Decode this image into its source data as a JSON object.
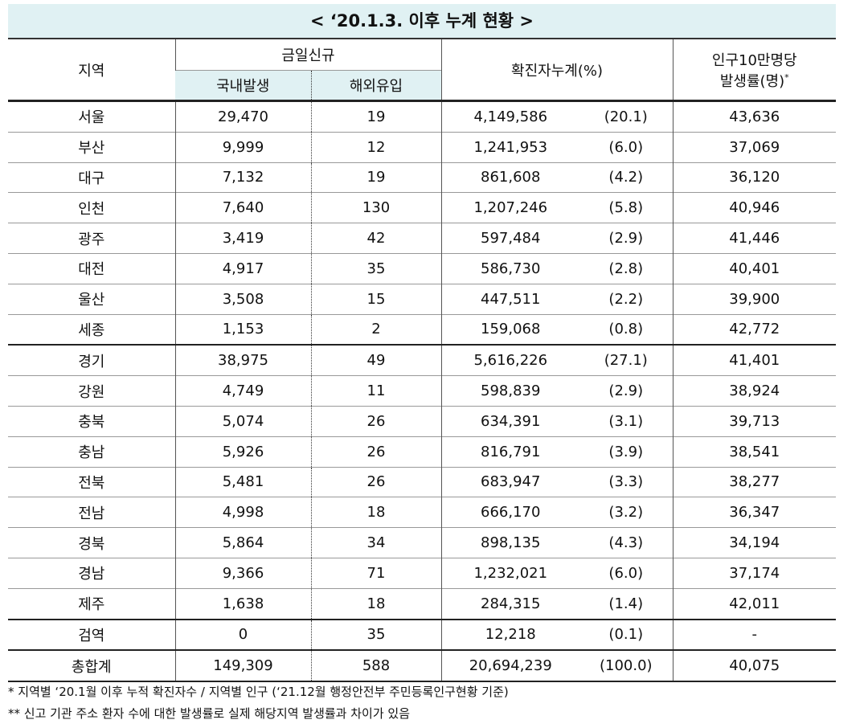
{
  "title": "< ‘20.1.3. 이후 누계 현황 >",
  "header": {
    "region": "지역",
    "new_today": "금일신규",
    "domestic": "국내발생",
    "overseas": "해외유입",
    "cumulative": "확진자누계(%)",
    "rate_line1": "인구10만명당",
    "rate_line2": "발생률(명)",
    "rate_mark": "*"
  },
  "table": {
    "rows": [
      [
        "서울",
        "29,470",
        "19",
        "4,149,586",
        "(20.1)",
        "43,636"
      ],
      [
        "부산",
        "9,999",
        "12",
        "1,241,953",
        "(6.0)",
        "37,069"
      ],
      [
        "대구",
        "7,132",
        "19",
        "861,608",
        "(4.2)",
        "36,120"
      ],
      [
        "인천",
        "7,640",
        "130",
        "1,207,246",
        "(5.8)",
        "40,946"
      ],
      [
        "광주",
        "3,419",
        "42",
        "597,484",
        "(2.9)",
        "41,446"
      ],
      [
        "대전",
        "4,917",
        "35",
        "586,730",
        "(2.8)",
        "40,401"
      ],
      [
        "울산",
        "3,508",
        "15",
        "447,511",
        "(2.2)",
        "39,900"
      ],
      [
        "세종",
        "1,153",
        "2",
        "159,068",
        "(0.8)",
        "42,772"
      ],
      [
        "경기",
        "38,975",
        "49",
        "5,616,226",
        "(27.1)",
        "41,401"
      ],
      [
        "강원",
        "4,749",
        "11",
        "598,839",
        "(2.9)",
        "38,924"
      ],
      [
        "충북",
        "5,074",
        "26",
        "634,391",
        "(3.1)",
        "39,713"
      ],
      [
        "충남",
        "5,926",
        "26",
        "816,791",
        "(3.9)",
        "38,541"
      ],
      [
        "전북",
        "5,481",
        "26",
        "683,947",
        "(3.3)",
        "38,277"
      ],
      [
        "전남",
        "4,998",
        "18",
        "666,170",
        "(3.2)",
        "36,347"
      ],
      [
        "경북",
        "5,864",
        "34",
        "898,135",
        "(4.3)",
        "34,194"
      ],
      [
        "경남",
        "9,366",
        "71",
        "1,232,021",
        "(6.0)",
        "37,174"
      ],
      [
        "제주",
        "1,638",
        "18",
        "284,315",
        "(1.4)",
        "42,011"
      ],
      [
        "검역",
        "0",
        "35",
        "12,218",
        "(0.1)",
        "-"
      ],
      [
        "총합계",
        "149,309",
        "588",
        "20,694,239",
        "(100.0)",
        "40,075"
      ]
    ]
  },
  "footnotes": [
    "* 지역별 ‘20.1월 이후 누적 확진자수 / 지역별 인구 (‘21.12월 행정안전부 주민등록인구현황 기준)",
    "** 신고 기관 주소 환자 수에 대한 발생률로 실제 해당지역 발생률과 차이가 있음"
  ]
}
